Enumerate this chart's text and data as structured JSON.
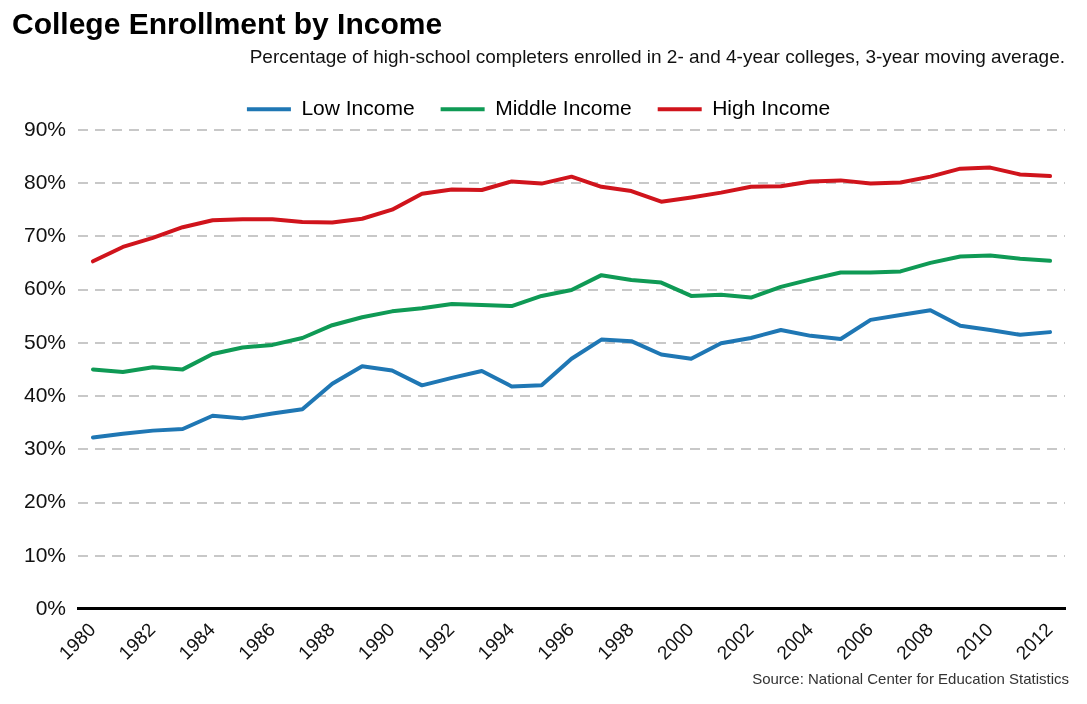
{
  "chart_data": {
    "type": "line",
    "title": "College Enrollment by Income",
    "subtitle": "Percentage of high-school completers enrolled in 2- and 4-year colleges, 3-year moving average.",
    "categories": [
      "1980",
      null,
      "1982",
      null,
      "1984",
      null,
      "1986",
      null,
      "1988",
      null,
      "1990",
      null,
      "1992",
      null,
      "1994",
      null,
      "1996",
      null,
      "1998",
      null,
      "2000",
      null,
      "2002",
      null,
      "2004",
      null,
      "2006",
      null,
      "2008",
      null,
      "2010",
      null,
      "2012"
    ],
    "series": [
      {
        "name": "Low Income",
        "color": "#1f77b4",
        "values": [
          32.2,
          32.9,
          33.5,
          33.8,
          36.3,
          35.8,
          36.7,
          37.5,
          42.3,
          45.6,
          44.8,
          42.0,
          43.4,
          44.7,
          41.8,
          42.0,
          47.0,
          50.6,
          50.3,
          47.8,
          47.0,
          49.9,
          50.9,
          52.4,
          51.3,
          50.7,
          54.3,
          55.2,
          56.1,
          53.2,
          52.4,
          51.5,
          52.0
        ]
      },
      {
        "name": "Middle Income",
        "color": "#0f9a55",
        "values": [
          45.0,
          44.5,
          45.4,
          45.0,
          47.9,
          49.1,
          49.6,
          50.9,
          53.3,
          54.8,
          55.9,
          56.5,
          57.3,
          57.1,
          56.9,
          58.8,
          59.9,
          62.7,
          61.8,
          61.3,
          58.8,
          59.0,
          58.5,
          60.5,
          61.9,
          63.2,
          63.2,
          63.4,
          65.0,
          66.2,
          66.4,
          65.8,
          65.4
        ]
      },
      {
        "name": "High Income",
        "color": "#d0141c",
        "values": [
          65.3,
          68.0,
          69.7,
          71.7,
          73.0,
          73.2,
          73.2,
          72.7,
          72.6,
          73.3,
          75.0,
          78.0,
          78.8,
          78.7,
          80.3,
          79.9,
          81.2,
          79.3,
          78.5,
          76.5,
          77.3,
          78.2,
          79.3,
          79.4,
          80.3,
          80.5,
          79.9,
          80.1,
          81.2,
          82.7,
          82.9,
          81.6,
          81.3
        ]
      }
    ],
    "ylim": [
      0,
      90
    ],
    "yticks": [
      {
        "value": 0,
        "label": "0%"
      },
      {
        "value": 10,
        "label": "10%"
      },
      {
        "value": 20,
        "label": "20%"
      },
      {
        "value": 30,
        "label": "30%"
      },
      {
        "value": 40,
        "label": "40%"
      },
      {
        "value": 50,
        "label": "50%"
      },
      {
        "value": 60,
        "label": "60%"
      },
      {
        "value": 70,
        "label": "70%"
      },
      {
        "value": 80,
        "label": "80%"
      },
      {
        "value": 90,
        "label": "90%"
      }
    ],
    "grid": "y",
    "legend": "top",
    "marker": "none",
    "line_style": "solid",
    "annotations": [
      "Source: National Center for Education Statistics"
    ]
  }
}
